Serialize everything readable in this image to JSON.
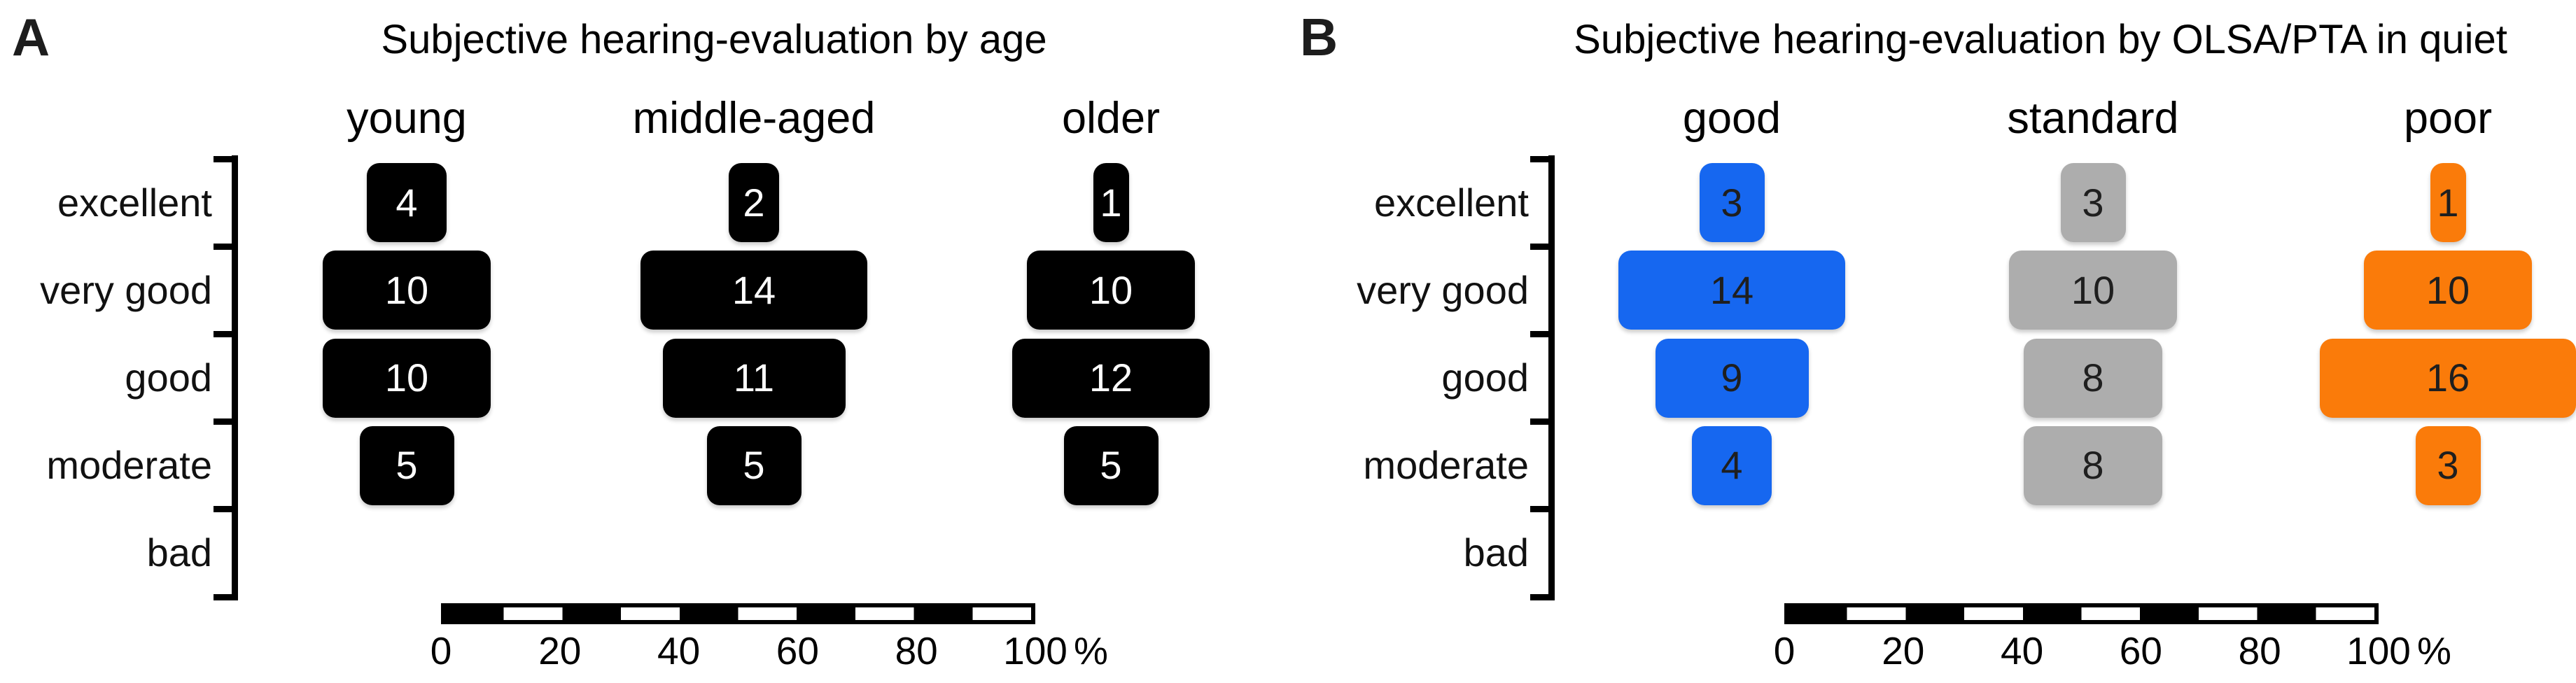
{
  "categories": [
    "excellent",
    "very good",
    "good",
    "moderate",
    "bad"
  ],
  "x_axis": {
    "tick_labels": [
      "0",
      "20",
      "40",
      "60",
      "80",
      "100"
    ],
    "unit_suffix": "%",
    "range": [
      0,
      100
    ]
  },
  "colors": {
    "black": "#000000",
    "blue": "#1667F0",
    "gray": "#ADADAD",
    "orange": "#FA7B0A"
  },
  "chart_data": [
    {
      "type": "bar",
      "variant": "centered horizontal count-bars (pyramid/mosaic style), bar width proportional to share of group on % scale",
      "panel_label": "A",
      "title": "Subjective hearing-evaluation by age",
      "categories": [
        "excellent",
        "very good",
        "good",
        "moderate",
        "bad"
      ],
      "series": [
        {
          "name": "young",
          "color": "#000000",
          "value_text_color": "#ffffff",
          "values": [
            4,
            10,
            10,
            5,
            0
          ]
        },
        {
          "name": "middle-aged",
          "color": "#000000",
          "value_text_color": "#ffffff",
          "values": [
            2,
            14,
            11,
            5,
            0
          ]
        },
        {
          "name": "older",
          "color": "#000000",
          "value_text_color": "#ffffff",
          "values": [
            1,
            10,
            12,
            5,
            0
          ]
        }
      ],
      "xlabel": "%",
      "xlim": [
        0,
        100
      ],
      "x_ticks": [
        0,
        20,
        40,
        60,
        80,
        100
      ],
      "legend": "none",
      "grid": false
    },
    {
      "type": "bar",
      "variant": "centered horizontal count-bars (pyramid/mosaic style), bar width proportional to share of group on % scale",
      "panel_label": "B",
      "title": "Subjective hearing-evaluation by OLSA/PTA in quiet",
      "categories": [
        "excellent",
        "very good",
        "good",
        "moderate",
        "bad"
      ],
      "series": [
        {
          "name": "good",
          "color": "#1667F0",
          "value_text_color": "#1f1f1f",
          "values": [
            3,
            14,
            9,
            4,
            0
          ]
        },
        {
          "name": "standard",
          "color": "#ADADAD",
          "value_text_color": "#1f1f1f",
          "values": [
            3,
            10,
            8,
            8,
            0
          ]
        },
        {
          "name": "poor",
          "color": "#FA7B0A",
          "value_text_color": "#1f1f1f",
          "values": [
            1,
            10,
            16,
            3,
            0
          ]
        }
      ],
      "xlabel": "%",
      "xlim": [
        0,
        100
      ],
      "x_ticks": [
        0,
        20,
        40,
        60,
        80,
        100
      ],
      "legend": "none",
      "grid": false
    }
  ]
}
